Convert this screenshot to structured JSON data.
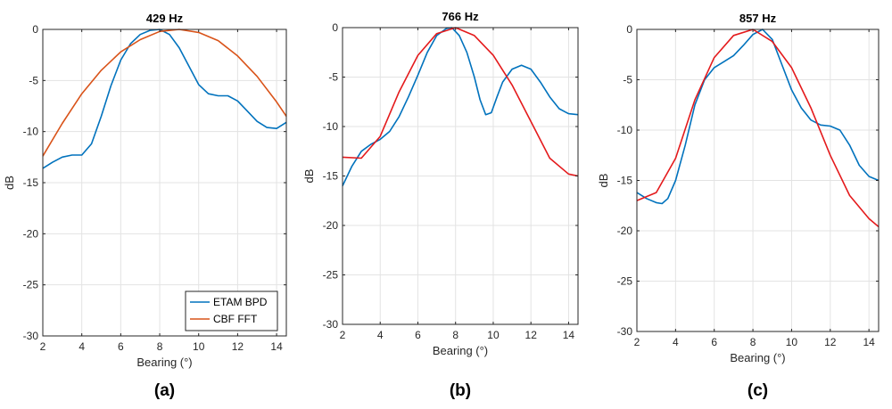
{
  "chart_data": [
    {
      "type": "line",
      "title": "429 Hz",
      "caption": "(a)",
      "xlabel": "Bearing (°)",
      "ylabel": "dB",
      "xlim": [
        2,
        14.5
      ],
      "ylim": [
        -30,
        0
      ],
      "xticks": [
        2,
        4,
        6,
        8,
        10,
        12,
        14
      ],
      "yticks": [
        0,
        -5,
        -10,
        -15,
        -20,
        -25,
        -30
      ],
      "grid": true,
      "legend": "bottom-right",
      "series": [
        {
          "name": "ETAM BPD",
          "color": "#0072bd",
          "x": [
            2,
            2.5,
            3,
            3.5,
            4,
            4.5,
            5,
            5.5,
            6,
            6.5,
            7,
            7.5,
            8,
            8.5,
            9,
            9.5,
            10,
            10.5,
            11,
            11.5,
            12,
            12.5,
            13,
            13.5,
            14,
            14.5
          ],
          "y": [
            -13.6,
            -13.0,
            -12.5,
            -12.3,
            -12.3,
            -11.2,
            -8.5,
            -5.5,
            -3.0,
            -1.4,
            -0.5,
            -0.1,
            0.0,
            -0.5,
            -1.8,
            -3.6,
            -5.4,
            -6.3,
            -6.5,
            -6.5,
            -7.0,
            -8.0,
            -9.0,
            -9.6,
            -9.7,
            -9.1
          ]
        },
        {
          "name": "CBF FFT",
          "color": "#d95319",
          "x": [
            2,
            3,
            4,
            5,
            6,
            7,
            8,
            9,
            10,
            11,
            12,
            13,
            14,
            14.5
          ],
          "y": [
            -12.4,
            -9.2,
            -6.3,
            -4.0,
            -2.2,
            -1.0,
            -0.2,
            0.0,
            -0.3,
            -1.1,
            -2.6,
            -4.6,
            -7.1,
            -8.5
          ]
        }
      ]
    },
    {
      "type": "line",
      "title": "766 Hz",
      "caption": "(b)",
      "xlabel": "Bearing (°)",
      "ylabel": "dB",
      "xlim": [
        2,
        14.5
      ],
      "ylim": [
        -30,
        0
      ],
      "xticks": [
        2,
        4,
        6,
        8,
        10,
        12,
        14
      ],
      "yticks": [
        0,
        -5,
        -10,
        -15,
        -20,
        -25,
        -30
      ],
      "grid": true,
      "series": [
        {
          "name": "",
          "color": "#0072bd",
          "x": [
            2,
            2.5,
            3,
            3.5,
            4,
            4.5,
            5,
            5.5,
            6,
            6.5,
            7,
            7.5,
            7.8,
            8.2,
            8.6,
            9,
            9.3,
            9.6,
            9.9,
            10.2,
            10.5,
            11,
            11.5,
            12,
            12.5,
            13,
            13.5,
            14,
            14.5
          ],
          "y": [
            -16.0,
            -14.0,
            -12.5,
            -11.8,
            -11.3,
            -10.5,
            -9.0,
            -7.0,
            -4.8,
            -2.5,
            -0.8,
            -0.1,
            0.0,
            -0.8,
            -2.5,
            -5.0,
            -7.3,
            -8.8,
            -8.6,
            -7.0,
            -5.5,
            -4.2,
            -3.8,
            -4.2,
            -5.5,
            -7.0,
            -8.2,
            -8.7,
            -8.8
          ]
        },
        {
          "name": "",
          "color": "#e41a1c",
          "x": [
            2,
            3,
            4,
            5,
            6,
            7,
            8,
            9,
            10,
            11,
            12,
            13,
            14,
            14.5
          ],
          "y": [
            -13.1,
            -13.2,
            -11.0,
            -6.5,
            -2.8,
            -0.6,
            0.0,
            -0.8,
            -2.8,
            -5.8,
            -9.5,
            -13.2,
            -14.8,
            -15.0
          ]
        }
      ]
    },
    {
      "type": "line",
      "title": "857 Hz",
      "caption": "(c)",
      "xlabel": "Bearing (°)",
      "ylabel": "dB",
      "xlim": [
        2,
        14.5
      ],
      "ylim": [
        -30,
        0
      ],
      "xticks": [
        2,
        4,
        6,
        8,
        10,
        12,
        14
      ],
      "yticks": [
        0,
        -5,
        -10,
        -15,
        -20,
        -25,
        -30
      ],
      "grid": true,
      "series": [
        {
          "name": "",
          "color": "#0072bd",
          "x": [
            2,
            2.5,
            3,
            3.3,
            3.6,
            4,
            4.5,
            5,
            5.5,
            6,
            6.5,
            7,
            7.5,
            8,
            8.5,
            9,
            9.5,
            10,
            10.5,
            11,
            11.5,
            12,
            12.5,
            13,
            13.5,
            14,
            14.5
          ],
          "y": [
            -16.2,
            -16.8,
            -17.2,
            -17.3,
            -16.8,
            -15.0,
            -11.5,
            -7.5,
            -5.0,
            -3.8,
            -3.2,
            -2.6,
            -1.6,
            -0.5,
            0.0,
            -1.0,
            -3.5,
            -6.0,
            -7.8,
            -9.0,
            -9.5,
            -9.6,
            -10.0,
            -11.5,
            -13.5,
            -14.6,
            -15.0
          ]
        },
        {
          "name": "",
          "color": "#e41a1c",
          "x": [
            2,
            3,
            4,
            5,
            6,
            7,
            8,
            9,
            10,
            11,
            12,
            13,
            14,
            14.5
          ],
          "y": [
            -17.0,
            -16.2,
            -12.8,
            -7.0,
            -2.8,
            -0.6,
            0.0,
            -1.2,
            -3.8,
            -7.8,
            -12.5,
            -16.5,
            -18.8,
            -19.6
          ]
        }
      ]
    }
  ]
}
